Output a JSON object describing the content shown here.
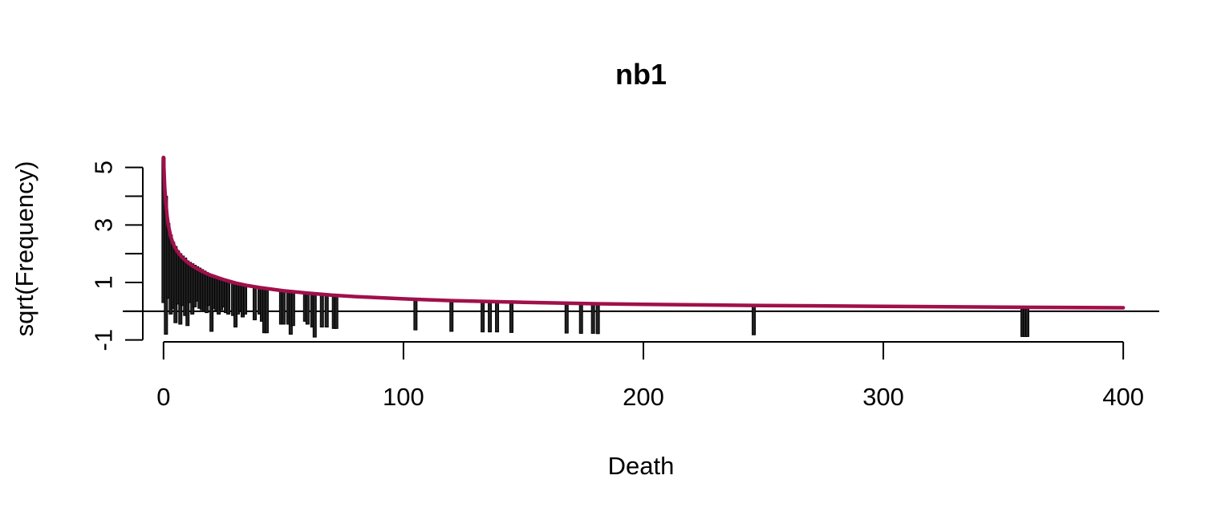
{
  "chart_data": {
    "type": "rootogram",
    "title": "nb1",
    "xlabel": "Death",
    "ylabel": "sqrt(Frequency)",
    "xlim": [
      -17,
      415
    ],
    "ylim": [
      -1.4,
      5.8
    ],
    "x_ticks": [
      0,
      100,
      200,
      300,
      400
    ],
    "y_ticks": [
      -1,
      0,
      1,
      2,
      3,
      4,
      5
    ],
    "y_tick_labels": [
      "-1",
      "",
      "1",
      "",
      "3",
      "",
      "5"
    ],
    "reference_line": 0,
    "hanging_bars": [
      {
        "x": 0,
        "top": 5.35,
        "bottom": 0.3
      },
      {
        "x": 1,
        "top": 4.0,
        "bottom": -0.8
      },
      {
        "x": 2,
        "top": 3.05,
        "bottom": 0.45
      },
      {
        "x": 3,
        "top": 2.65,
        "bottom": -0.1
      },
      {
        "x": 4,
        "top": 2.4,
        "bottom": 0.1
      },
      {
        "x": 5,
        "top": 2.25,
        "bottom": -0.4
      },
      {
        "x": 6,
        "top": 2.1,
        "bottom": 0.25
      },
      {
        "x": 7,
        "top": 2.0,
        "bottom": -0.45
      },
      {
        "x": 8,
        "top": 1.92,
        "bottom": 0.2
      },
      {
        "x": 9,
        "top": 1.85,
        "bottom": -0.15
      },
      {
        "x": 10,
        "top": 1.75,
        "bottom": -0.5
      },
      {
        "x": 11,
        "top": 1.7,
        "bottom": 0.3
      },
      {
        "x": 12,
        "top": 1.65,
        "bottom": -0.1
      },
      {
        "x": 13,
        "top": 1.6,
        "bottom": 0.15
      },
      {
        "x": 14,
        "top": 1.55,
        "bottom": 0.35
      },
      {
        "x": 15,
        "top": 1.5,
        "bottom": 0.1
      },
      {
        "x": 16,
        "top": 1.45,
        "bottom": 0.05
      },
      {
        "x": 17,
        "top": 1.4,
        "bottom": 0.0
      },
      {
        "x": 18,
        "top": 1.35,
        "bottom": -0.05
      },
      {
        "x": 19,
        "top": 1.3,
        "bottom": 0.2
      },
      {
        "x": 20,
        "top": 1.28,
        "bottom": -0.7
      },
      {
        "x": 21,
        "top": 1.25,
        "bottom": 0.1
      },
      {
        "x": 22,
        "top": 1.2,
        "bottom": 0.0
      },
      {
        "x": 23,
        "top": 1.18,
        "bottom": -0.1
      },
      {
        "x": 24,
        "top": 1.15,
        "bottom": 0.05
      },
      {
        "x": 25,
        "top": 1.12,
        "bottom": 0.15
      },
      {
        "x": 26,
        "top": 1.1,
        "bottom": -0.05
      },
      {
        "x": 27,
        "top": 1.08,
        "bottom": -0.1
      },
      {
        "x": 29,
        "top": 1.02,
        "bottom": -0.15
      },
      {
        "x": 30,
        "top": 1.0,
        "bottom": -0.55
      },
      {
        "x": 31,
        "top": 0.98,
        "bottom": -0.1
      },
      {
        "x": 32,
        "top": 0.96,
        "bottom": 0.0
      },
      {
        "x": 33,
        "top": 0.95,
        "bottom": -0.2
      },
      {
        "x": 34,
        "top": 0.93,
        "bottom": -0.1
      },
      {
        "x": 38,
        "top": 0.86,
        "bottom": -0.3
      },
      {
        "x": 40,
        "top": 0.83,
        "bottom": -0.1
      },
      {
        "x": 41,
        "top": 0.82,
        "bottom": -0.35
      },
      {
        "x": 42,
        "top": 0.8,
        "bottom": -0.75
      },
      {
        "x": 43,
        "top": 0.79,
        "bottom": -0.75
      },
      {
        "x": 49,
        "top": 0.72,
        "bottom": -0.45
      },
      {
        "x": 50,
        "top": 0.71,
        "bottom": -0.45
      },
      {
        "x": 52,
        "top": 0.69,
        "bottom": -0.45
      },
      {
        "x": 53,
        "top": 0.68,
        "bottom": -0.8
      },
      {
        "x": 54,
        "top": 0.67,
        "bottom": -0.5
      },
      {
        "x": 59,
        "top": 0.63,
        "bottom": -0.35
      },
      {
        "x": 60,
        "top": 0.62,
        "bottom": -0.45
      },
      {
        "x": 62,
        "top": 0.61,
        "bottom": -0.55
      },
      {
        "x": 63,
        "top": 0.6,
        "bottom": -0.9
      },
      {
        "x": 66,
        "top": 0.58,
        "bottom": -0.55
      },
      {
        "x": 68,
        "top": 0.57,
        "bottom": -0.55
      },
      {
        "x": 71,
        "top": 0.55,
        "bottom": -0.6
      },
      {
        "x": 72,
        "top": 0.55,
        "bottom": -0.6
      },
      {
        "x": 105,
        "top": 0.4,
        "bottom": -0.65
      },
      {
        "x": 120,
        "top": 0.36,
        "bottom": -0.7
      },
      {
        "x": 133,
        "top": 0.33,
        "bottom": -0.72
      },
      {
        "x": 136,
        "top": 0.32,
        "bottom": -0.72
      },
      {
        "x": 139,
        "top": 0.32,
        "bottom": -0.72
      },
      {
        "x": 145,
        "top": 0.31,
        "bottom": -0.74
      },
      {
        "x": 168,
        "top": 0.27,
        "bottom": -0.76
      },
      {
        "x": 174,
        "top": 0.26,
        "bottom": -0.77
      },
      {
        "x": 179,
        "top": 0.26,
        "bottom": -0.77
      },
      {
        "x": 181,
        "top": 0.25,
        "bottom": -0.78
      },
      {
        "x": 246,
        "top": 0.19,
        "bottom": -0.82
      },
      {
        "x": 358,
        "top": 0.14,
        "bottom": -0.88
      },
      {
        "x": 359,
        "top": 0.14,
        "bottom": -0.88
      },
      {
        "x": 360,
        "top": 0.14,
        "bottom": -0.88
      }
    ],
    "expected_curve": {
      "x": [
        0,
        0.5,
        1,
        1.5,
        2,
        3,
        4,
        5,
        6,
        8,
        10,
        12,
        15,
        18,
        20,
        25,
        30,
        35,
        40,
        50,
        60,
        70,
        80,
        100,
        120,
        150,
        180,
        200,
        250,
        300,
        350,
        400
      ],
      "y": [
        5.35,
        4.3,
        3.75,
        3.3,
        3.0,
        2.6,
        2.35,
        2.18,
        2.05,
        1.85,
        1.7,
        1.58,
        1.43,
        1.31,
        1.24,
        1.1,
        0.98,
        0.89,
        0.82,
        0.71,
        0.63,
        0.56,
        0.51,
        0.43,
        0.37,
        0.31,
        0.26,
        0.24,
        0.2,
        0.17,
        0.14,
        0.12
      ],
      "color": "#A0104A"
    },
    "grid": false,
    "legend": "none"
  }
}
